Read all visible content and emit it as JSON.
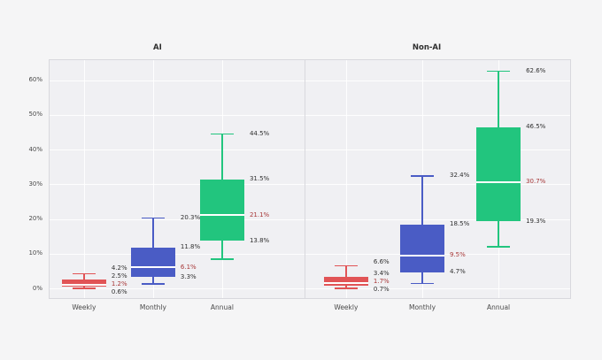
{
  "window": {
    "background": "#f5f5f6",
    "plot_background": "#f0f0f3",
    "border_color": "#d8d8dd"
  },
  "chart_data": {
    "type": "boxplot",
    "grid": true,
    "orientation": "vertical",
    "y_axis": {
      "range": [
        -3,
        66
      ],
      "ticks": [
        {
          "value": 0,
          "label": "0%"
        },
        {
          "value": 10,
          "label": "10%"
        },
        {
          "value": 20,
          "label": "20%"
        },
        {
          "value": 30,
          "label": "30%"
        },
        {
          "value": 40,
          "label": "40%"
        },
        {
          "value": 50,
          "label": "50%"
        },
        {
          "value": 60,
          "label": "60%"
        }
      ]
    },
    "colors": {
      "weekly_box": "#e15456",
      "monthly_box": "#4a5cc5",
      "annual_box": "#22c57e",
      "median_line": "#ffffff",
      "median_label": "#a73737",
      "annotation_text": "#2f2f2f"
    },
    "panels": [
      {
        "title": "AI",
        "categories": [
          "Weekly",
          "Monthly",
          "Annual"
        ],
        "boxes": [
          {
            "category": "Weekly",
            "color": "#e15456",
            "min": 0.0,
            "q1": 0.6,
            "median": 1.2,
            "q3": 2.5,
            "max": 4.2,
            "annotations": [
              {
                "role": "max",
                "text": "4.2%"
              },
              {
                "role": "q3",
                "text": "2.5%"
              },
              {
                "role": "median",
                "text": "1.2%"
              },
              {
                "role": "q1",
                "text": "0.6%"
              }
            ]
          },
          {
            "category": "Monthly",
            "color": "#4a5cc5",
            "min": 1.3,
            "q1": 3.3,
            "median": 6.1,
            "q3": 11.8,
            "max": 20.3,
            "annotations": [
              {
                "role": "max",
                "text": "20.3%"
              },
              {
                "role": "q3",
                "text": "11.8%"
              },
              {
                "role": "median",
                "text": "6.1%"
              },
              {
                "role": "q1",
                "text": "3.3%"
              }
            ]
          },
          {
            "category": "Annual",
            "color": "#22c57e",
            "min": 8.5,
            "q1": 13.8,
            "median": 21.1,
            "q3": 31.5,
            "max": 44.5,
            "annotations": [
              {
                "role": "max",
                "text": "44.5%"
              },
              {
                "role": "q3",
                "text": "31.5%"
              },
              {
                "role": "median",
                "text": "21.1%"
              },
              {
                "role": "q1",
                "text": "13.8%"
              }
            ]
          }
        ]
      },
      {
        "title": "Non-AI",
        "categories": [
          "Weekly",
          "Monthly",
          "Annual"
        ],
        "boxes": [
          {
            "category": "Weekly",
            "color": "#e15456",
            "min": 0.0,
            "q1": 0.7,
            "median": 1.7,
            "q3": 3.4,
            "max": 6.6,
            "annotations": [
              {
                "role": "max",
                "text": "6.6%"
              },
              {
                "role": "q3",
                "text": "3.4%"
              },
              {
                "role": "median",
                "text": "1.7%"
              },
              {
                "role": "q1",
                "text": "0.7%"
              }
            ]
          },
          {
            "category": "Monthly",
            "color": "#4a5cc5",
            "min": 1.5,
            "q1": 4.7,
            "median": 9.5,
            "q3": 18.5,
            "max": 32.4,
            "annotations": [
              {
                "role": "max",
                "text": "32.4%"
              },
              {
                "role": "q3",
                "text": "18.5%"
              },
              {
                "role": "median",
                "text": "9.5%"
              },
              {
                "role": "q1",
                "text": "4.7%"
              }
            ]
          },
          {
            "category": "Annual",
            "color": "#22c57e",
            "min": 12.0,
            "q1": 19.3,
            "median": 30.7,
            "q3": 46.5,
            "max": 62.6,
            "annotations": [
              {
                "role": "max",
                "text": "62.6%"
              },
              {
                "role": "q3",
                "text": "46.5%"
              },
              {
                "role": "median",
                "text": "30.7%"
              },
              {
                "role": "q1",
                "text": "19.3%"
              }
            ]
          }
        ]
      }
    ]
  }
}
